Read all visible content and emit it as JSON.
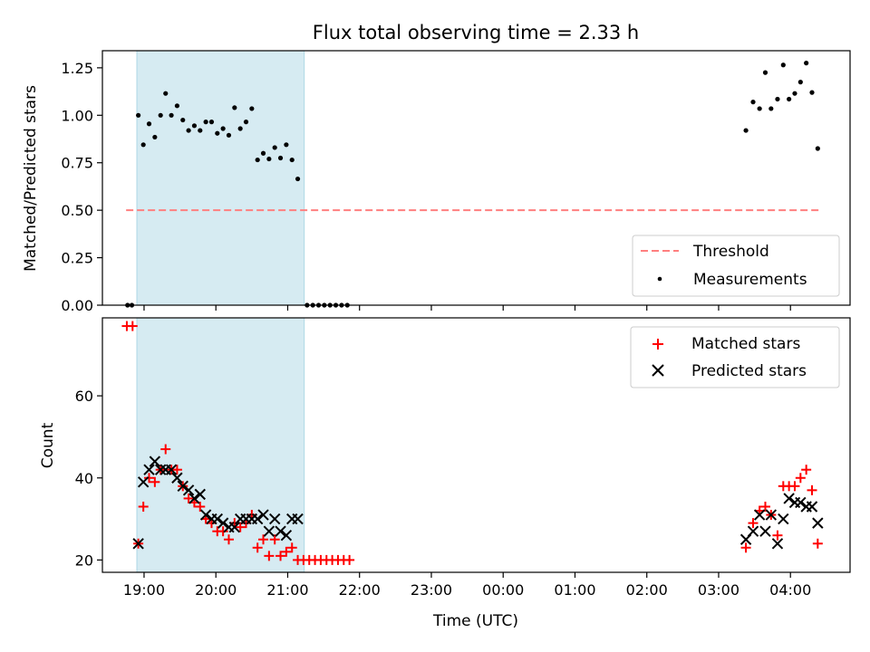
{
  "figure": {
    "title": "Flux total observing time = 2.33 h",
    "xlabel": "Time (UTC)"
  },
  "colors": {
    "shade": "#add8e6",
    "threshold": "#ff7f7f",
    "measurement": "#000000",
    "matched": "#ff0000",
    "predicted": "#000000"
  },
  "chart_data": [
    {
      "type": "scatter",
      "panel": "top",
      "ylabel": "Matched/Predicted stars",
      "xlim": [
        18.42,
        28.83
      ],
      "ylim": [
        0,
        1.34
      ],
      "yticks": [
        0.0,
        0.25,
        0.5,
        0.75,
        1.0,
        1.25
      ],
      "ytick_labels": [
        "0.00",
        "0.25",
        "0.50",
        "0.75",
        "1.00",
        "1.25"
      ],
      "shaded_span": [
        18.9,
        21.23
      ],
      "threshold": {
        "name": "Threshold",
        "y": 0.5,
        "x": [
          18.75,
          28.4
        ]
      },
      "legend": {
        "position": "lower-right",
        "entries": [
          "Threshold",
          "Measurements"
        ]
      },
      "series": [
        {
          "name": "Measurements",
          "marker": "dot",
          "points": [
            [
              18.77,
              0.0
            ],
            [
              18.83,
              0.0
            ],
            [
              18.92,
              1.0
            ],
            [
              18.99,
              0.845
            ],
            [
              19.07,
              0.955
            ],
            [
              19.15,
              0.885
            ],
            [
              19.23,
              1.0
            ],
            [
              19.3,
              1.115
            ],
            [
              19.38,
              1.0
            ],
            [
              19.46,
              1.05
            ],
            [
              19.54,
              0.975
            ],
            [
              19.62,
              0.92
            ],
            [
              19.7,
              0.945
            ],
            [
              19.78,
              0.92
            ],
            [
              19.86,
              0.965
            ],
            [
              19.94,
              0.965
            ],
            [
              20.02,
              0.905
            ],
            [
              20.1,
              0.93
            ],
            [
              20.18,
              0.895
            ],
            [
              20.26,
              1.04
            ],
            [
              20.34,
              0.93
            ],
            [
              20.42,
              0.965
            ],
            [
              20.5,
              1.035
            ],
            [
              20.58,
              0.765
            ],
            [
              20.66,
              0.8
            ],
            [
              20.74,
              0.77
            ],
            [
              20.82,
              0.83
            ],
            [
              20.9,
              0.775
            ],
            [
              20.98,
              0.845
            ],
            [
              21.06,
              0.765
            ],
            [
              21.14,
              0.665
            ],
            [
              21.27,
              0.0
            ],
            [
              21.35,
              0.0
            ],
            [
              21.43,
              0.0
            ],
            [
              21.51,
              0.0
            ],
            [
              21.59,
              0.0
            ],
            [
              21.67,
              0.0
            ],
            [
              21.75,
              0.0
            ],
            [
              21.83,
              0.0
            ],
            [
              27.38,
              0.92
            ],
            [
              27.48,
              1.07
            ],
            [
              27.57,
              1.035
            ],
            [
              27.65,
              1.225
            ],
            [
              27.73,
              1.035
            ],
            [
              27.82,
              1.085
            ],
            [
              27.9,
              1.265
            ],
            [
              27.98,
              1.085
            ],
            [
              28.06,
              1.115
            ],
            [
              28.14,
              1.175
            ],
            [
              28.22,
              1.275
            ],
            [
              28.3,
              1.12
            ],
            [
              28.38,
              0.825
            ]
          ]
        }
      ]
    },
    {
      "type": "scatter",
      "panel": "bottom",
      "ylabel": "Count",
      "xlim": [
        18.42,
        28.83
      ],
      "ylim": [
        17,
        79
      ],
      "yticks": [
        20,
        40,
        60
      ],
      "ytick_labels": [
        "20",
        "40",
        "60"
      ],
      "xticks": [
        19,
        20,
        21,
        22,
        23,
        24,
        25,
        26,
        27,
        28
      ],
      "xtick_labels": [
        "19:00",
        "20:00",
        "21:00",
        "22:00",
        "23:00",
        "00:00",
        "01:00",
        "02:00",
        "03:00",
        "04:00"
      ],
      "shaded_span": [
        18.9,
        21.23
      ],
      "legend": {
        "position": "upper-right",
        "entries": [
          "Matched stars",
          "Predicted stars"
        ]
      },
      "series": [
        {
          "name": "Matched stars",
          "marker": "plus",
          "points": [
            [
              18.76,
              77
            ],
            [
              18.84,
              77
            ],
            [
              18.92,
              24
            ],
            [
              18.99,
              33
            ],
            [
              19.07,
              40
            ],
            [
              19.15,
              39
            ],
            [
              19.23,
              42
            ],
            [
              19.3,
              47
            ],
            [
              19.38,
              42
            ],
            [
              19.46,
              42
            ],
            [
              19.54,
              38
            ],
            [
              19.62,
              35
            ],
            [
              19.7,
              34
            ],
            [
              19.78,
              33
            ],
            [
              19.86,
              30
            ],
            [
              19.94,
              29
            ],
            [
              20.02,
              27
            ],
            [
              20.1,
              27
            ],
            [
              20.18,
              25
            ],
            [
              20.26,
              29
            ],
            [
              20.34,
              28
            ],
            [
              20.42,
              29
            ],
            [
              20.5,
              31
            ],
            [
              20.58,
              23
            ],
            [
              20.66,
              25
            ],
            [
              20.74,
              21
            ],
            [
              20.82,
              25
            ],
            [
              20.9,
              21
            ],
            [
              20.98,
              22
            ],
            [
              21.06,
              23
            ],
            [
              21.14,
              20
            ],
            [
              21.22,
              20
            ],
            [
              21.3,
              20
            ],
            [
              21.38,
              20
            ],
            [
              21.46,
              20
            ],
            [
              21.54,
              20
            ],
            [
              21.62,
              20
            ],
            [
              21.7,
              20
            ],
            [
              21.78,
              20
            ],
            [
              21.86,
              20
            ],
            [
              27.38,
              23
            ],
            [
              27.48,
              29
            ],
            [
              27.57,
              32
            ],
            [
              27.65,
              33
            ],
            [
              27.73,
              31
            ],
            [
              27.82,
              26
            ],
            [
              27.9,
              38
            ],
            [
              27.98,
              38
            ],
            [
              28.06,
              38
            ],
            [
              28.14,
              40
            ],
            [
              28.22,
              42
            ],
            [
              28.3,
              37
            ],
            [
              28.38,
              24
            ]
          ]
        },
        {
          "name": "Predicted stars",
          "marker": "x",
          "points": [
            [
              18.92,
              24
            ],
            [
              18.99,
              39
            ],
            [
              19.07,
              42
            ],
            [
              19.15,
              44
            ],
            [
              19.23,
              42
            ],
            [
              19.3,
              42
            ],
            [
              19.38,
              42
            ],
            [
              19.46,
              40
            ],
            [
              19.54,
              38
            ],
            [
              19.62,
              37
            ],
            [
              19.7,
              35
            ],
            [
              19.78,
              36
            ],
            [
              19.86,
              31
            ],
            [
              19.94,
              30
            ],
            [
              20.02,
              30
            ],
            [
              20.1,
              29
            ],
            [
              20.18,
              28
            ],
            [
              20.26,
              28
            ],
            [
              20.34,
              30
            ],
            [
              20.42,
              30
            ],
            [
              20.5,
              30
            ],
            [
              20.58,
              30
            ],
            [
              20.66,
              31
            ],
            [
              20.74,
              27
            ],
            [
              20.82,
              30
            ],
            [
              20.9,
              27
            ],
            [
              20.98,
              26
            ],
            [
              21.06,
              30
            ],
            [
              21.14,
              30
            ],
            [
              27.38,
              25
            ],
            [
              27.48,
              27
            ],
            [
              27.57,
              31
            ],
            [
              27.65,
              27
            ],
            [
              27.73,
              31
            ],
            [
              27.82,
              24
            ],
            [
              27.9,
              30
            ],
            [
              27.98,
              35
            ],
            [
              28.06,
              34
            ],
            [
              28.14,
              34
            ],
            [
              28.22,
              33
            ],
            [
              28.3,
              33
            ],
            [
              28.38,
              29
            ]
          ]
        }
      ]
    }
  ]
}
